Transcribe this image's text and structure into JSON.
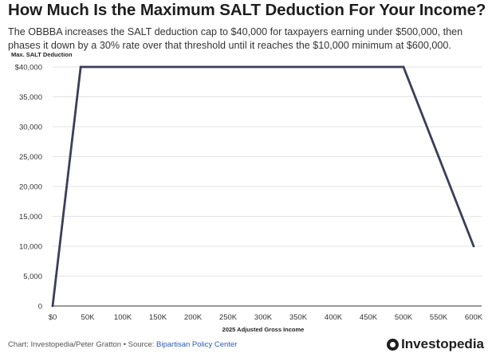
{
  "title": "How Much Is the Maximum SALT Deduction For Your Income?",
  "subtitle": "The OBBBA increases the SALT deduction cap to $40,000 for taxpayers earning under $500,000, then phases it down by a 30% rate over that threshold until it reaches the $10,000 minimum at $600,000.",
  "footer": {
    "credit": "Chart: Investopedia/Peter Gratton • Source: ",
    "source_link": "Bipartisan Policy Center"
  },
  "brand": "Investopedia",
  "chart_data": {
    "type": "line",
    "xlabel": "2025 Adjusted Gross Income",
    "ylabel": "Max. SALT Deduction",
    "xlim": [
      0,
      600000
    ],
    "ylim": [
      0,
      40000
    ],
    "x_ticks": [
      {
        "value": 0,
        "label": "$0"
      },
      {
        "value": 50000,
        "label": "50K"
      },
      {
        "value": 100000,
        "label": "100K"
      },
      {
        "value": 150000,
        "label": "150K"
      },
      {
        "value": 200000,
        "label": "200K"
      },
      {
        "value": 250000,
        "label": "250K"
      },
      {
        "value": 300000,
        "label": "300K"
      },
      {
        "value": 350000,
        "label": "350K"
      },
      {
        "value": 400000,
        "label": "400K"
      },
      {
        "value": 450000,
        "label": "450K"
      },
      {
        "value": 500000,
        "label": "500K"
      },
      {
        "value": 550000,
        "label": "550K"
      },
      {
        "value": 600000,
        "label": "600K"
      }
    ],
    "y_ticks": [
      {
        "value": 0,
        "label": "0"
      },
      {
        "value": 5000,
        "label": "5,000"
      },
      {
        "value": 10000,
        "label": "10,000"
      },
      {
        "value": 15000,
        "label": "15,000"
      },
      {
        "value": 20000,
        "label": "20,000"
      },
      {
        "value": 25000,
        "label": "25,000"
      },
      {
        "value": 30000,
        "label": "30,000"
      },
      {
        "value": 35000,
        "label": "35,000"
      },
      {
        "value": 40000,
        "label": "$40,000"
      }
    ],
    "grid": "horizontal",
    "series": [
      {
        "color": "#3a3f58",
        "points": [
          {
            "x": 0,
            "y": 0
          },
          {
            "x": 40000,
            "y": 40000
          },
          {
            "x": 500000,
            "y": 40000
          },
          {
            "x": 600000,
            "y": 10000
          }
        ]
      }
    ]
  }
}
